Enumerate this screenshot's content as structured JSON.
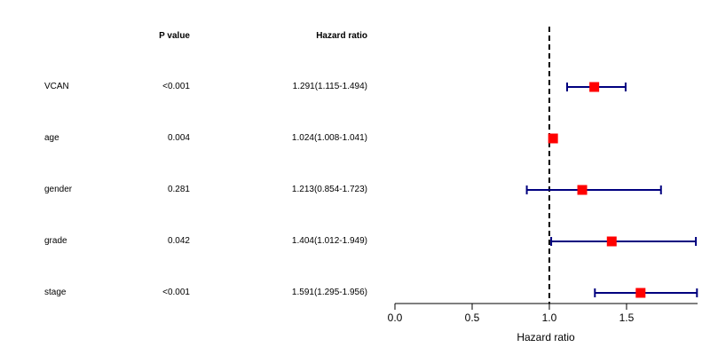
{
  "table": {
    "pvalue_header": "P value",
    "hr_header": "Hazard ratio"
  },
  "chart_data": {
    "type": "forest",
    "xlabel": "Hazard ratio",
    "xlim": [
      0,
      1.96
    ],
    "xticks": [
      0.0,
      0.5,
      1.0,
      1.5
    ],
    "tick_labels": [
      "0.0",
      "0.5",
      "1.0",
      "1.5"
    ],
    "reference_line": 1.0,
    "colors": {
      "point": "#ff0000",
      "ci": "#00007f",
      "reference": "#000000"
    },
    "rows": [
      {
        "variable": "VCAN",
        "pvalue": "<0.001",
        "hr_text": "1.291(1.115-1.494)",
        "hr": 1.291,
        "low": 1.115,
        "high": 1.494
      },
      {
        "variable": "age",
        "pvalue": "0.004",
        "hr_text": "1.024(1.008-1.041)",
        "hr": 1.024,
        "low": 1.008,
        "high": 1.041
      },
      {
        "variable": "gender",
        "pvalue": "0.281",
        "hr_text": "1.213(0.854-1.723)",
        "hr": 1.213,
        "low": 0.854,
        "high": 1.723
      },
      {
        "variable": "grade",
        "pvalue": "0.042",
        "hr_text": "1.404(1.012-1.949)",
        "hr": 1.404,
        "low": 1.012,
        "high": 1.949
      },
      {
        "variable": "stage",
        "pvalue": "<0.001",
        "hr_text": "1.591(1.295-1.956)",
        "hr": 1.591,
        "low": 1.295,
        "high": 1.956
      }
    ]
  }
}
